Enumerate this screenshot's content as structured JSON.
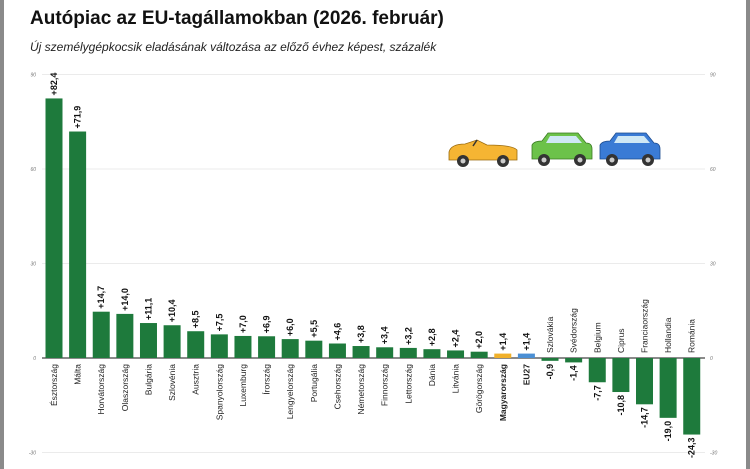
{
  "title": "Autópiac az EU-tagállamokban (2026. február)",
  "subtitle": "Új személygépkocsik eladásának változása az előző évhez képest, százalék",
  "chart_data": {
    "type": "bar",
    "title": "Autópiac az EU-tagállamokban (2026. február)",
    "subtitle": "Új személygépkocsik eladásának változása az előző évhez képest, százalék",
    "categories": [
      "Észtország",
      "Málta",
      "Horvátország",
      "Olaszország",
      "Bulgária",
      "Szlovénia",
      "Ausztria",
      "Spanyolország",
      "Luxemburg",
      "Írország",
      "Lengyelország",
      "Portugália",
      "Csehország",
      "Németország",
      "Finnország",
      "Lettország",
      "Dánia",
      "Litvánia",
      "Görögország",
      "Magyarország",
      "EU27",
      "Szlovákia",
      "Svédország",
      "Belgium",
      "Ciprus",
      "Franciaország",
      "Hollandia",
      "Románia"
    ],
    "values": [
      82.4,
      71.9,
      14.7,
      14.0,
      11.1,
      10.4,
      8.5,
      7.5,
      7.0,
      6.9,
      6.0,
      5.5,
      4.6,
      3.8,
      3.4,
      3.2,
      2.8,
      2.4,
      2.0,
      1.4,
      1.4,
      -0.9,
      -1.4,
      -7.7,
      -10.8,
      -14.7,
      -19.0,
      -24.3
    ],
    "data_labels": [
      "+82,4",
      "+71,9",
      "+14,7",
      "+14,0",
      "+11,1",
      "+10,4",
      "+8,5",
      "+7,5",
      "+7,0",
      "+6,9",
      "+6,0",
      "+5,5",
      "+4,6",
      "+3,8",
      "+3,4",
      "+3,2",
      "+2,8",
      "+2,4",
      "+2,0",
      "+1,4",
      "+1,4",
      "-0,9",
      "-1,4",
      "-7,7",
      "-10,8",
      "-14,7",
      "-19,0",
      "-24,3"
    ],
    "bold_categories": [
      "Magyarország",
      "EU27"
    ],
    "colors": {
      "default": "#1e7a3c",
      "Magyarország": "#f0b02a",
      "EU27": "#4a8fd4"
    },
    "ylim": [
      -30,
      90
    ],
    "yticks": [
      -30,
      0,
      30,
      60,
      90
    ],
    "ytick_labels": [
      "-30",
      "0",
      "30",
      "60",
      "90"
    ],
    "grid": true,
    "xlabel": "",
    "ylabel": ""
  },
  "decorations": {
    "icons": [
      "convertible-car-icon",
      "green-car-icon",
      "blue-car-icon"
    ]
  }
}
